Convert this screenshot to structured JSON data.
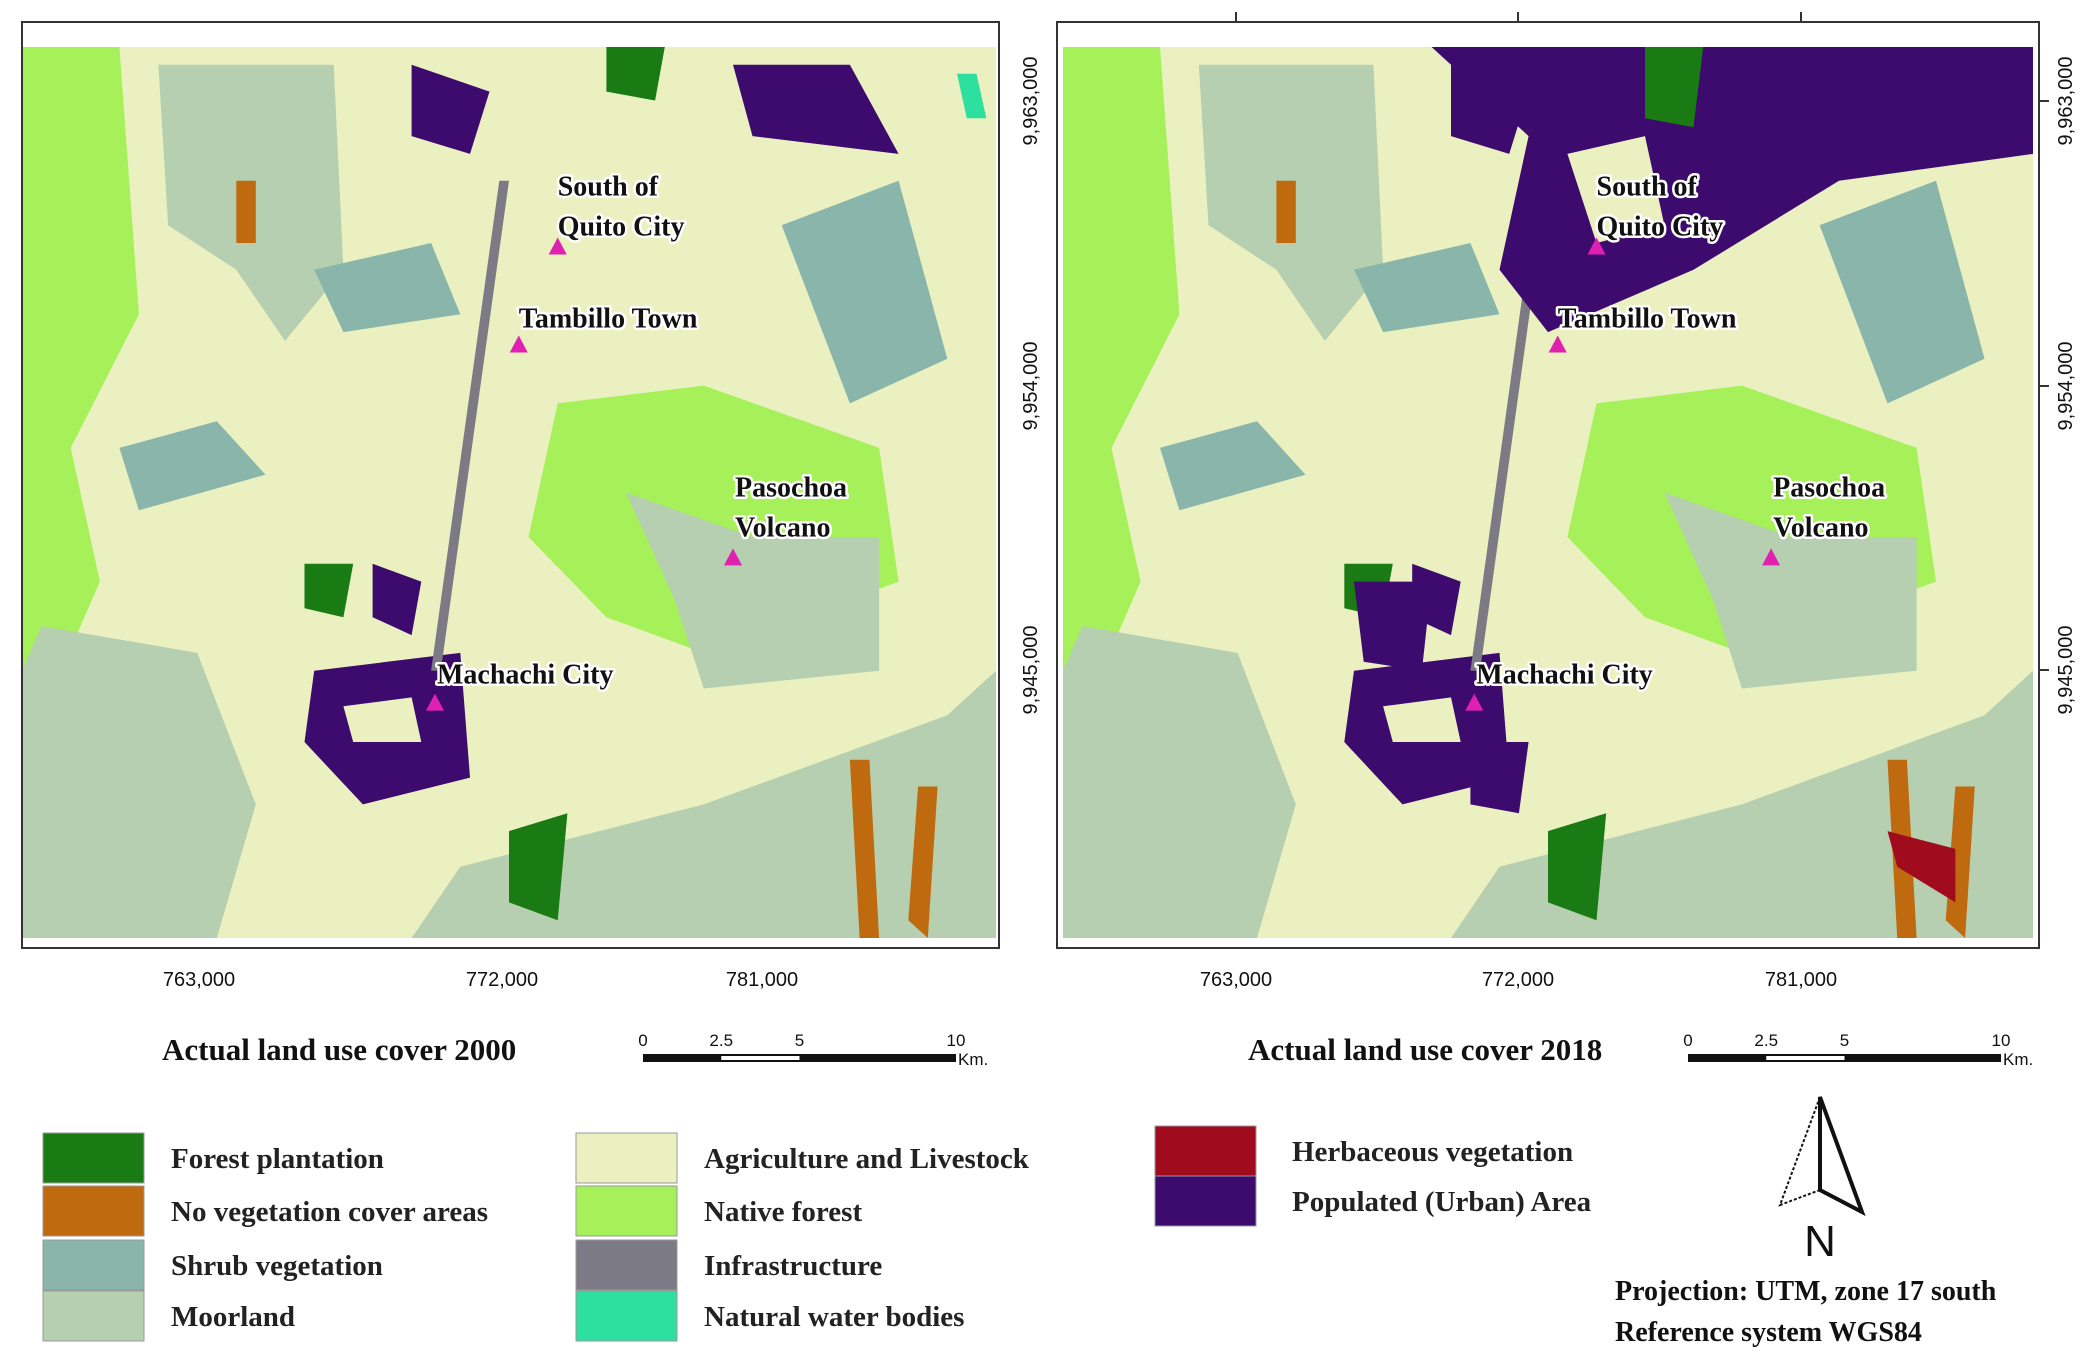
{
  "maps": [
    {
      "title": "Actual land use cover 2000",
      "places": [
        {
          "lines": [
            "South of",
            "Quito City"
          ]
        },
        {
          "lines": [
            "Tambillo Town"
          ]
        },
        {
          "lines": [
            "Pasochoa",
            "Volcano"
          ]
        },
        {
          "lines": [
            "Machachi City"
          ]
        }
      ],
      "x_ticks": [
        "763,000",
        "772,000",
        "781,000"
      ]
    },
    {
      "title": "Actual land use cover 2018",
      "places": [
        {
          "lines": [
            "South of",
            "Quito City"
          ]
        },
        {
          "lines": [
            "Tambillo Town"
          ]
        },
        {
          "lines": [
            "Pasochoa",
            "Volcano"
          ]
        },
        {
          "lines": [
            "Machachi City"
          ]
        }
      ],
      "x_ticks": [
        "763,000",
        "772,000",
        "781,000"
      ],
      "y_ticks": [
        "9,963,000",
        "9,954,000",
        "9,945,000"
      ]
    }
  ],
  "scale_bar": {
    "labels": [
      "0",
      "2.5",
      "5",
      "10"
    ],
    "unit": "Km."
  },
  "legend": [
    {
      "label": "Forest plantation",
      "color": "#1a7a14"
    },
    {
      "label": "No vegetation cover areas",
      "color": "#c06a10"
    },
    {
      "label": "Shrub vegetation",
      "color": "#8ab5aa"
    },
    {
      "label": "Moorland",
      "color": "#b5cfb0"
    },
    {
      "label": "Agriculture and Livestock",
      "color": "#eaf0c0"
    },
    {
      "label": "Native forest",
      "color": "#a6f05a"
    },
    {
      "label": "Infrastructure",
      "color": "#7b7a85"
    },
    {
      "label": "Natural water bodies",
      "color": "#2ee0a0"
    },
    {
      "label": "Herbaceous vegetation",
      "color": "#a00c1e"
    },
    {
      "label": "Populated (Urban) Area",
      "color": "#3d0a6e"
    }
  ],
  "north_arrow": "N",
  "notes": [
    "Projection: UTM, zone 17 south",
    "Reference system WGS84"
  ]
}
